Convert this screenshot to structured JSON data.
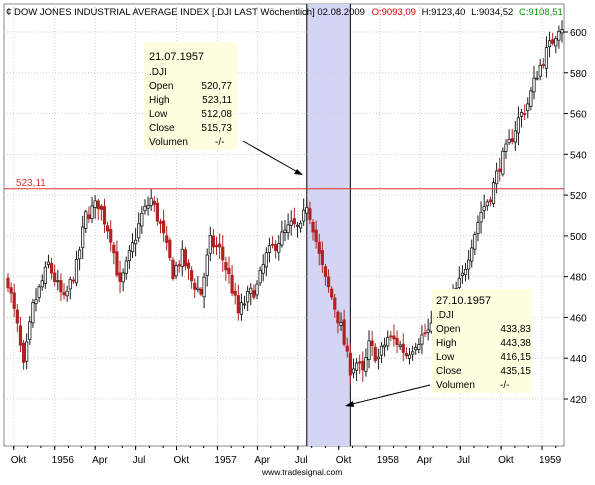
{
  "header": {
    "title": "DOW JONES INDUSTRIAL AVERAGE INDEX [.DJI LAST Wöchentlich] 02.08.2009",
    "open": "O:9093,09",
    "high": "H:9123,40",
    "low": "L:9034,52",
    "close": "C:9108,51"
  },
  "watermark": "www.tradesignal.com",
  "colors": {
    "up": "#1a1a1a",
    "down": "#b22222",
    "open_text": "#cc0000",
    "close_text": "#009900",
    "hline": "#e03030",
    "shade": "#d4d4f4",
    "info_bg": "#ffffe0",
    "grid": "#cfcfcf"
  },
  "hline": {
    "value": 523.11,
    "label": "523,11"
  },
  "info_boxes": [
    {
      "date": "21.07.1957",
      "symbol": ".DJI",
      "rows": [
        {
          "label": "Open",
          "value": "520,77"
        },
        {
          "label": "High",
          "value": "523,11"
        },
        {
          "label": "Low",
          "value": "512,08"
        },
        {
          "label": "Close",
          "value": "515,73"
        },
        {
          "label": "Volumen",
          "value": "-/-"
        }
      ]
    },
    {
      "date": "27.10.1957",
      "symbol": ".DJI",
      "rows": [
        {
          "label": "Open",
          "value": "433,83"
        },
        {
          "label": "High",
          "value": "443,38"
        },
        {
          "label": "Low",
          "value": "416,15"
        },
        {
          "label": "Close",
          "value": "435,15"
        },
        {
          "label": "Volumen",
          "value": "-/-"
        }
      ]
    }
  ],
  "chart_data": {
    "type": "candlestick",
    "y_ticks": [
      420,
      440,
      460,
      480,
      500,
      520,
      540,
      560,
      580,
      600
    ],
    "ylim": [
      408,
      612
    ],
    "x_ticks": [
      {
        "label": "Okt",
        "date": "1955-10-01"
      },
      {
        "label": "1956",
        "date": "1956-01-01"
      },
      {
        "label": "Apr",
        "date": "1956-04-01"
      },
      {
        "label": "Jul",
        "date": "1956-07-01"
      },
      {
        "label": "Okt",
        "date": "1956-10-01"
      },
      {
        "label": "1957",
        "date": "1957-01-01"
      },
      {
        "label": "Apr",
        "date": "1957-04-01"
      },
      {
        "label": "Jul",
        "date": "1957-07-01"
      },
      {
        "label": "Okt",
        "date": "1957-10-01"
      },
      {
        "label": "1958",
        "date": "1958-01-01"
      },
      {
        "label": "Apr",
        "date": "1958-04-01"
      },
      {
        "label": "Jul",
        "date": "1958-07-01"
      },
      {
        "label": "Okt",
        "date": "1958-10-01"
      },
      {
        "label": "1959",
        "date": "1959-01-01"
      }
    ],
    "xlim": [
      "1955-09-18",
      "1959-02-15"
    ],
    "highlight_range": [
      "1957-07-21",
      "1957-10-27"
    ],
    "grid": true,
    "price_points": [
      [
        "1955-09-18",
        478
      ],
      [
        "1955-10-09",
        455
      ],
      [
        "1955-10-23",
        435
      ],
      [
        "1955-11-13",
        465
      ],
      [
        "1955-12-18",
        486
      ],
      [
        "1956-01-22",
        468
      ],
      [
        "1956-02-19",
        485
      ],
      [
        "1956-03-11",
        510
      ],
      [
        "1956-04-08",
        516
      ],
      [
        "1956-05-06",
        500
      ],
      [
        "1956-05-27",
        475
      ],
      [
        "1956-06-17",
        490
      ],
      [
        "1956-07-15",
        510
      ],
      [
        "1956-08-05",
        518
      ],
      [
        "1956-08-26",
        505
      ],
      [
        "1956-09-23",
        482
      ],
      [
        "1956-10-14",
        490
      ],
      [
        "1956-11-04",
        478
      ],
      [
        "1956-11-25",
        472
      ],
      [
        "1956-12-16",
        497
      ],
      [
        "1957-01-06",
        493
      ],
      [
        "1957-01-27",
        480
      ],
      [
        "1957-02-17",
        462
      ],
      [
        "1957-03-10",
        470
      ],
      [
        "1957-03-31",
        475
      ],
      [
        "1957-04-21",
        490
      ],
      [
        "1957-05-19",
        498
      ],
      [
        "1957-06-16",
        505
      ],
      [
        "1957-07-07",
        503
      ],
      [
        "1957-07-21",
        516
      ],
      [
        "1957-08-04",
        505
      ],
      [
        "1957-08-18",
        490
      ],
      [
        "1957-09-01",
        478
      ],
      [
        "1957-09-15",
        470
      ],
      [
        "1957-10-06",
        455
      ],
      [
        "1957-10-20",
        440
      ],
      [
        "1957-10-27",
        435
      ],
      [
        "1957-11-10",
        438
      ],
      [
        "1957-11-24",
        432
      ],
      [
        "1957-12-08",
        446
      ],
      [
        "1957-12-29",
        440
      ],
      [
        "1958-01-19",
        450
      ],
      [
        "1958-02-09",
        448
      ],
      [
        "1958-03-02",
        442
      ],
      [
        "1958-03-23",
        448
      ],
      [
        "1958-04-13",
        452
      ],
      [
        "1958-05-04",
        455
      ],
      [
        "1958-05-25",
        460
      ],
      [
        "1958-06-15",
        470
      ],
      [
        "1958-07-06",
        480
      ],
      [
        "1958-07-27",
        497
      ],
      [
        "1958-08-17",
        512
      ],
      [
        "1958-09-07",
        520
      ],
      [
        "1958-09-28",
        535
      ],
      [
        "1958-10-19",
        545
      ],
      [
        "1958-11-09",
        557
      ],
      [
        "1958-11-30",
        565
      ],
      [
        "1958-12-21",
        580
      ],
      [
        "1959-01-11",
        590
      ],
      [
        "1959-01-25",
        596
      ],
      [
        "1959-02-08",
        603
      ]
    ]
  }
}
